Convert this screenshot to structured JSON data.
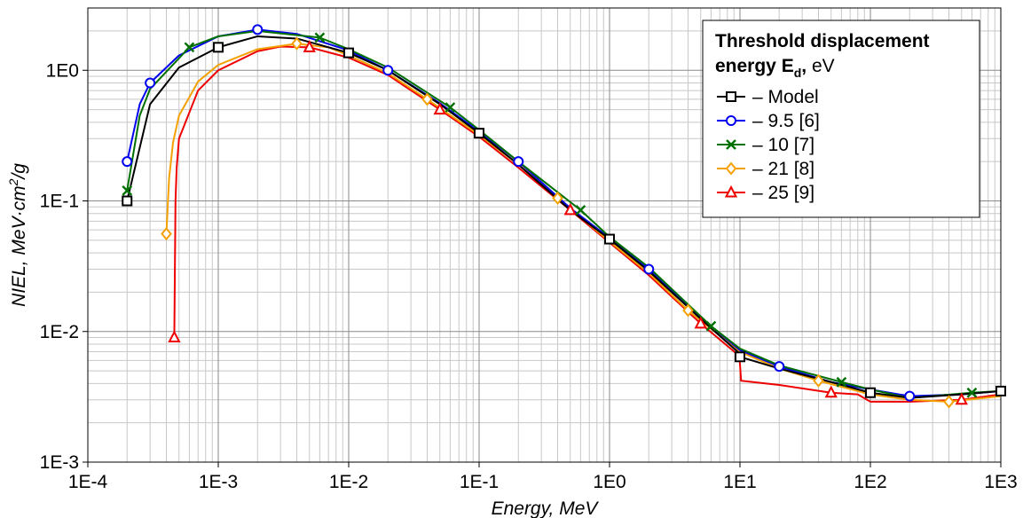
{
  "chart_data": {
    "type": "line",
    "xscale": "log",
    "yscale": "log",
    "xlim": [
      0.0001,
      1000
    ],
    "ylim": [
      0.001,
      3
    ],
    "grid": true,
    "xlabel": "Energy, MeV",
    "ylabel_parts": {
      "main": "NIEL, MeV·cm",
      "sup": "2",
      "end": "/g"
    },
    "x_ticks": [
      {
        "value": 0.0001,
        "label": "1E-4"
      },
      {
        "value": 0.001,
        "label": "1E-3"
      },
      {
        "value": 0.01,
        "label": "1E-2"
      },
      {
        "value": 0.1,
        "label": "1E-1"
      },
      {
        "value": 1,
        "label": "1E0"
      },
      {
        "value": 10,
        "label": "1E1"
      },
      {
        "value": 100,
        "label": "1E2"
      },
      {
        "value": 1000,
        "label": "1E3"
      }
    ],
    "y_ticks": [
      {
        "value": 0.001,
        "label": "1E-3"
      },
      {
        "value": 0.01,
        "label": "1E-2"
      },
      {
        "value": 0.1,
        "label": "1E-1"
      },
      {
        "value": 1,
        "label": "1E0"
      }
    ],
    "legend": {
      "title_line1": "Threshold displacement",
      "title_line2_bold": "energy E",
      "title_line2_sub": "d",
      "title_line2_comma": ",",
      "title_line2_unit": " eV",
      "placement": "top-right"
    },
    "series": [
      {
        "name": "Model",
        "color": "#000000",
        "marker": "square",
        "points": [
          [
            0.0002,
            0.1
          ],
          [
            0.0003,
            0.55
          ],
          [
            0.0005,
            1.05
          ],
          [
            0.001,
            1.5
          ],
          [
            0.002,
            1.82
          ],
          [
            0.004,
            1.75
          ],
          [
            0.01,
            1.36
          ],
          [
            0.02,
            1.0
          ],
          [
            0.05,
            0.55
          ],
          [
            0.1,
            0.33
          ],
          [
            0.2,
            0.19
          ],
          [
            0.5,
            0.085
          ],
          [
            1,
            0.051
          ],
          [
            2,
            0.029
          ],
          [
            5,
            0.0125
          ],
          [
            9.9,
            0.0068
          ],
          [
            10,
            0.0064
          ],
          [
            20,
            0.0052
          ],
          [
            50,
            0.0041
          ],
          [
            100,
            0.0034
          ],
          [
            200,
            0.0031
          ],
          [
            500,
            0.0033
          ],
          [
            1000,
            0.0035
          ]
        ],
        "marker_x": [
          0.0002,
          0.001,
          0.01,
          0.1,
          1,
          10,
          100,
          1000
        ]
      },
      {
        "name": "9.5 [6]",
        "color": "#0000ee",
        "marker": "circle",
        "points": [
          [
            0.0002,
            0.2
          ],
          [
            0.00025,
            0.55
          ],
          [
            0.0003,
            0.8
          ],
          [
            0.0005,
            1.3
          ],
          [
            0.001,
            1.82
          ],
          [
            0.002,
            2.05
          ],
          [
            0.004,
            1.9
          ],
          [
            0.01,
            1.42
          ],
          [
            0.02,
            1.0
          ],
          [
            0.05,
            0.56
          ],
          [
            0.1,
            0.34
          ],
          [
            0.2,
            0.2
          ],
          [
            0.5,
            0.088
          ],
          [
            1,
            0.052
          ],
          [
            2,
            0.03
          ],
          [
            5,
            0.0128
          ],
          [
            10,
            0.0072
          ],
          [
            20,
            0.0054
          ],
          [
            50,
            0.0041
          ],
          [
            100,
            0.0036
          ],
          [
            200,
            0.0032
          ],
          [
            500,
            0.0033
          ],
          [
            1000,
            0.0035
          ]
        ],
        "marker_x": [
          0.0002,
          0.0003,
          0.002,
          0.02,
          0.2,
          2,
          20,
          200
        ]
      },
      {
        "name": "10 [7]",
        "color": "#007000",
        "marker": "x",
        "points": [
          [
            0.0002,
            0.12
          ],
          [
            0.00025,
            0.45
          ],
          [
            0.0003,
            0.72
          ],
          [
            0.0006,
            1.5
          ],
          [
            0.001,
            1.82
          ],
          [
            0.002,
            2.0
          ],
          [
            0.006,
            1.78
          ],
          [
            0.01,
            1.45
          ],
          [
            0.02,
            1.05
          ],
          [
            0.06,
            0.52
          ],
          [
            0.1,
            0.35
          ],
          [
            0.2,
            0.2
          ],
          [
            0.6,
            0.085
          ],
          [
            1,
            0.053
          ],
          [
            2,
            0.031
          ],
          [
            6,
            0.011
          ],
          [
            10,
            0.0074
          ],
          [
            20,
            0.0055
          ],
          [
            60,
            0.0041
          ],
          [
            100,
            0.0036
          ],
          [
            200,
            0.0031
          ],
          [
            600,
            0.0034
          ],
          [
            1000,
            0.0035
          ]
        ],
        "marker_x": [
          0.0002,
          0.0006,
          0.006,
          0.06,
          0.6,
          6,
          60,
          600
        ]
      },
      {
        "name": "21 [8]",
        "color": "#f4a000",
        "marker": "diamond",
        "points": [
          [
            0.0004,
            0.056
          ],
          [
            0.00042,
            0.15
          ],
          [
            0.00045,
            0.28
          ],
          [
            0.0005,
            0.45
          ],
          [
            0.0007,
            0.82
          ],
          [
            0.001,
            1.1
          ],
          [
            0.002,
            1.45
          ],
          [
            0.004,
            1.6
          ],
          [
            0.007,
            1.5
          ],
          [
            0.01,
            1.3
          ],
          [
            0.02,
            0.95
          ],
          [
            0.04,
            0.6
          ],
          [
            0.1,
            0.32
          ],
          [
            0.2,
            0.19
          ],
          [
            0.4,
            0.105
          ],
          [
            1,
            0.049
          ],
          [
            2,
            0.028
          ],
          [
            4,
            0.0145
          ],
          [
            10,
            0.007
          ],
          [
            20,
            0.0052
          ],
          [
            40,
            0.0042
          ],
          [
            100,
            0.0033
          ],
          [
            200,
            0.003
          ],
          [
            400,
            0.0029
          ],
          [
            1000,
            0.0032
          ]
        ],
        "marker_x": [
          0.0004,
          0.004,
          0.04,
          0.4,
          4,
          40,
          400
        ]
      },
      {
        "name": "25 [9]",
        "color": "#ee0000",
        "marker": "triangle",
        "points": [
          [
            0.00046,
            0.009
          ],
          [
            0.00047,
            0.1
          ],
          [
            0.00048,
            0.18
          ],
          [
            0.0005,
            0.3
          ],
          [
            0.0007,
            0.7
          ],
          [
            0.001,
            1.0
          ],
          [
            0.002,
            1.4
          ],
          [
            0.003,
            1.52
          ],
          [
            0.005,
            1.5
          ],
          [
            0.01,
            1.25
          ],
          [
            0.02,
            0.92
          ],
          [
            0.05,
            0.5
          ],
          [
            0.1,
            0.31
          ],
          [
            0.2,
            0.18
          ],
          [
            0.5,
            0.085
          ],
          [
            1,
            0.048
          ],
          [
            2,
            0.027
          ],
          [
            5,
            0.0115
          ],
          [
            9.9,
            0.0065
          ],
          [
            10.2,
            0.0042
          ],
          [
            20,
            0.0039
          ],
          [
            50,
            0.0034
          ],
          [
            80,
            0.0033
          ],
          [
            100,
            0.0029
          ],
          [
            200,
            0.0029
          ],
          [
            500,
            0.003
          ],
          [
            1000,
            0.0033
          ]
        ],
        "marker_x": [
          0.00046,
          0.005,
          0.05,
          0.5,
          5,
          50,
          500
        ]
      }
    ]
  }
}
